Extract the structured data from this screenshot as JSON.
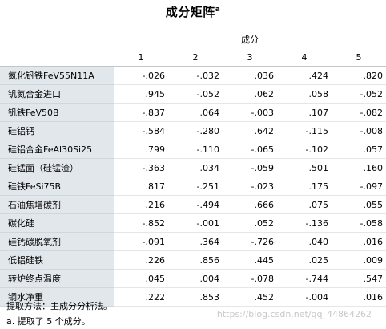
{
  "title": "成分矩阵",
  "title_superscript": "a",
  "group_header": "成分",
  "columns": [
    "1",
    "2",
    "3",
    "4",
    "5"
  ],
  "rows": [
    {
      "label": "氮化钒铁FeV55N11A",
      "values": [
        "-.026",
        "-.032",
        ".036",
        ".424",
        ".820"
      ]
    },
    {
      "label": "钒氮合金进口",
      "values": [
        ".945",
        "-.052",
        ".062",
        ".058",
        "-.052"
      ]
    },
    {
      "label": "钒铁FeV50B",
      "values": [
        "-.837",
        ".064",
        "-.003",
        ".107",
        "-.082"
      ]
    },
    {
      "label": "硅铝钙",
      "values": [
        "-.584",
        "-.280",
        ".642",
        "-.115",
        "-.008"
      ]
    },
    {
      "label": "硅铝合金FeAl30Si25",
      "values": [
        ".799",
        "-.110",
        "-.065",
        "-.102",
        ".057"
      ]
    },
    {
      "label": "硅锰面（硅锰渣）",
      "values": [
        "-.363",
        ".034",
        "-.059",
        ".501",
        ".160"
      ]
    },
    {
      "label": "硅铁FeSi75B",
      "values": [
        ".817",
        "-.251",
        "-.023",
        ".175",
        "-.097"
      ]
    },
    {
      "label": "石油焦增碳剂",
      "values": [
        ".216",
        "-.494",
        ".666",
        ".075",
        ".055"
      ]
    },
    {
      "label": "碳化硅",
      "values": [
        "-.852",
        "-.001",
        ".052",
        "-.136",
        "-.058"
      ]
    },
    {
      "label": "硅钙碳脱氧剂",
      "values": [
        "-.091",
        ".364",
        "-.726",
        ".040",
        ".016"
      ]
    },
    {
      "label": "低铝硅铁",
      "values": [
        ".226",
        ".856",
        ".445",
        ".025",
        ".009"
      ]
    },
    {
      "label": "转炉终点温度",
      "values": [
        ".045",
        ".004",
        "-.078",
        "-.744",
        ".547"
      ]
    },
    {
      "label": "钢水净重",
      "values": [
        ".222",
        ".853",
        ".452",
        "-.004",
        ".016"
      ]
    }
  ],
  "notes": {
    "method": "提取方法：主成分分析法。",
    "footnote": "a. 提取了 5 个成分。"
  },
  "watermark": "https://blog.csdn.net/qq_44864262"
}
